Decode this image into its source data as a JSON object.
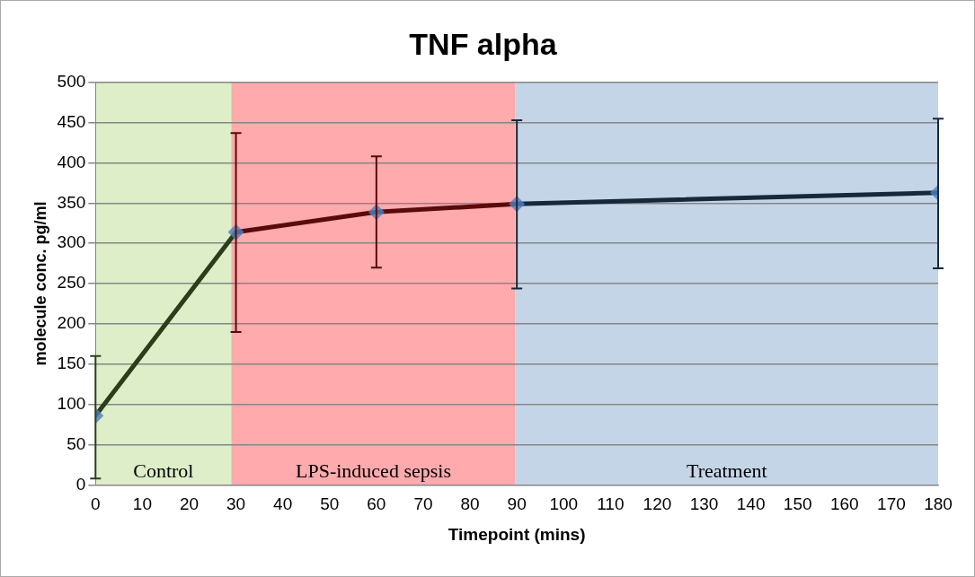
{
  "chart_data": {
    "type": "line",
    "title": "TNF alpha",
    "xlabel": "Timepoint (mins)",
    "ylabel": "molecule conc. pg/ml",
    "xlim": [
      0,
      180
    ],
    "xticks": [
      0,
      10,
      20,
      30,
      40,
      50,
      60,
      70,
      80,
      90,
      100,
      110,
      120,
      130,
      140,
      150,
      160,
      170,
      180
    ],
    "ylim": [
      0,
      500
    ],
    "yticks": [
      0,
      50,
      100,
      150,
      200,
      250,
      300,
      350,
      400,
      450,
      500
    ],
    "grid": "y",
    "legend": false,
    "series": [
      {
        "type": "line",
        "color": "#2b3d1a",
        "x": [
          0,
          30
        ],
        "values": [
          86,
          314
        ],
        "errors": [
          [
            8,
            160
          ],
          null
        ],
        "marker": "none"
      },
      {
        "type": "line",
        "color": "#5a0a0a",
        "x": [
          30,
          60,
          90
        ],
        "values": [
          314,
          339,
          349
        ],
        "errors": [
          [
            190,
            437
          ],
          [
            270,
            408
          ],
          null
        ],
        "marker": "none"
      },
      {
        "type": "line",
        "color": "#17283b",
        "x": [
          90,
          180
        ],
        "values": [
          349,
          363
        ],
        "errors": [
          [
            244,
            453
          ],
          [
            269,
            455
          ]
        ],
        "marker": "none"
      },
      {
        "type": "scatter",
        "color": "#4f81bd",
        "x": [
          0,
          30,
          60,
          90,
          180
        ],
        "values": [
          86,
          314,
          339,
          349,
          363
        ],
        "marker": "diamond"
      }
    ],
    "bands": [
      {
        "axis": "x",
        "from": 0,
        "to": 29,
        "label": "Control",
        "color": "#ddeec8"
      },
      {
        "axis": "x",
        "from": 29,
        "to": 89.7,
        "label": "LPS-induced sepsis",
        "color": "#ffaaad"
      },
      {
        "axis": "x",
        "from": 89.7,
        "to": 180,
        "label": "Treatment",
        "color": "#c4d5e7"
      }
    ]
  }
}
